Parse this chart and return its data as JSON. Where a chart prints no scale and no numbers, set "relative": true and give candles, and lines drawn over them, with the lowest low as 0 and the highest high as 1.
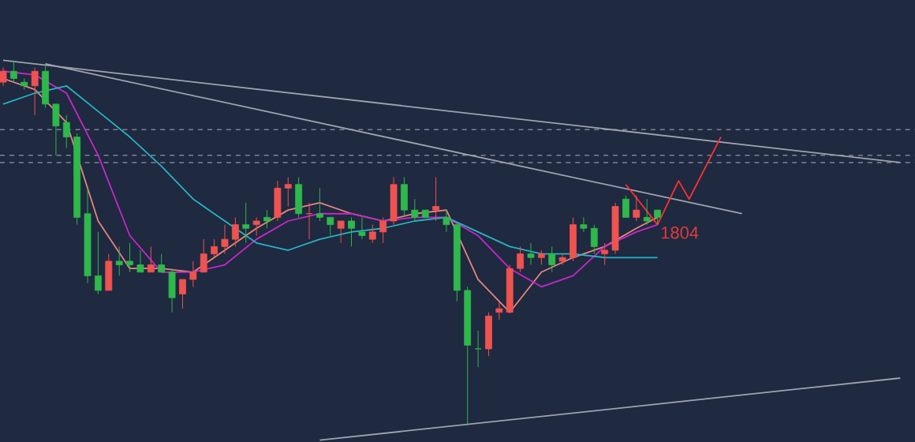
{
  "chart_data": {
    "type": "candlestick",
    "relative": true,
    "categories": [
      null,
      null,
      null,
      null,
      null,
      null,
      null,
      null,
      null,
      null,
      null,
      null,
      null,
      null,
      null,
      null,
      null,
      null,
      null,
      null,
      null,
      null,
      null,
      null,
      null,
      null,
      null,
      null,
      null,
      null,
      null,
      null,
      null,
      null,
      null,
      null,
      null,
      null,
      null,
      null,
      null,
      null,
      null,
      null,
      null,
      null,
      null,
      null,
      null,
      null,
      null,
      null,
      null,
      null,
      null,
      null,
      null,
      null,
      null,
      null,
      null,
      null,
      null,
      null,
      null,
      null,
      null,
      null,
      null,
      null,
      null,
      null,
      null,
      null,
      null,
      null,
      null,
      null,
      null,
      null,
      null,
      null,
      null,
      null,
      null,
      null
    ],
    "ohlc": [
      [
        0.94,
        0.98,
        0.93,
        0.97
      ],
      [
        0.97,
        1.0,
        0.94,
        0.95
      ],
      [
        0.94,
        0.95,
        0.92,
        0.93
      ],
      [
        0.93,
        0.98,
        0.85,
        0.97
      ],
      [
        0.97,
        0.99,
        0.87,
        0.88
      ],
      [
        0.88,
        0.88,
        0.74,
        0.82
      ],
      [
        0.83,
        0.85,
        0.76,
        0.79
      ],
      [
        0.79,
        0.8,
        0.55,
        0.57
      ],
      [
        0.58,
        0.65,
        0.39,
        0.41
      ],
      [
        0.41,
        0.53,
        0.36,
        0.37
      ],
      [
        0.37,
        0.47,
        0.37,
        0.45
      ],
      [
        0.45,
        0.49,
        0.41,
        0.44
      ],
      [
        0.45,
        0.5,
        0.42,
        0.44
      ],
      [
        0.44,
        0.48,
        0.42,
        0.42
      ],
      [
        0.42,
        0.49,
        0.42,
        0.44
      ],
      [
        0.44,
        0.47,
        0.42,
        0.42
      ],
      [
        0.42,
        0.43,
        0.31,
        0.35
      ],
      [
        0.36,
        0.4,
        0.32,
        0.4
      ],
      [
        0.4,
        0.45,
        0.38,
        0.42
      ],
      [
        0.42,
        0.51,
        0.42,
        0.47
      ],
      [
        0.47,
        0.51,
        0.46,
        0.49
      ],
      [
        0.49,
        0.55,
        0.47,
        0.51
      ],
      [
        0.51,
        0.57,
        0.49,
        0.55
      ],
      [
        0.55,
        0.61,
        0.5,
        0.54
      ],
      [
        0.55,
        0.57,
        0.52,
        0.56
      ],
      [
        0.57,
        0.59,
        0.54,
        0.56
      ],
      [
        0.57,
        0.67,
        0.56,
        0.65
      ],
      [
        0.65,
        0.68,
        0.6,
        0.66
      ],
      [
        0.66,
        0.68,
        0.57,
        0.58
      ],
      [
        0.58,
        0.61,
        0.51,
        0.58
      ],
      [
        0.58,
        0.65,
        0.56,
        0.57
      ],
      [
        0.57,
        0.57,
        0.52,
        0.55
      ],
      [
        0.54,
        0.56,
        0.5,
        0.56
      ],
      [
        0.56,
        0.57,
        0.49,
        0.54
      ],
      [
        0.53,
        0.57,
        0.51,
        0.52
      ],
      [
        0.51,
        0.55,
        0.5,
        0.53
      ],
      [
        0.53,
        0.57,
        0.5,
        0.56
      ],
      [
        0.56,
        0.68,
        0.55,
        0.66
      ],
      [
        0.66,
        0.68,
        0.57,
        0.59
      ],
      [
        0.59,
        0.62,
        0.56,
        0.57
      ],
      [
        0.59,
        0.59,
        0.57,
        0.57
      ],
      [
        0.59,
        0.68,
        0.56,
        0.6
      ],
      [
        0.57,
        0.59,
        0.53,
        0.55
      ],
      [
        0.55,
        0.55,
        0.34,
        0.37
      ],
      [
        0.37,
        0.38,
        0.0,
        0.22
      ],
      [
        0.21,
        0.26,
        0.16,
        0.21
      ],
      [
        0.21,
        0.31,
        0.19,
        0.3
      ],
      [
        0.31,
        0.34,
        0.29,
        0.32
      ],
      [
        0.31,
        0.44,
        0.31,
        0.43
      ],
      [
        0.43,
        0.49,
        0.42,
        0.47
      ],
      [
        0.47,
        0.5,
        0.44,
        0.46
      ],
      [
        0.46,
        0.48,
        0.44,
        0.47
      ],
      [
        0.47,
        0.49,
        0.42,
        0.44
      ],
      [
        0.45,
        0.47,
        0.44,
        0.46
      ],
      [
        0.46,
        0.57,
        0.45,
        0.55
      ],
      [
        0.55,
        0.57,
        0.53,
        0.54
      ],
      [
        0.54,
        0.55,
        0.47,
        0.49
      ],
      [
        0.47,
        0.5,
        0.44,
        0.48
      ],
      [
        0.48,
        0.61,
        0.47,
        0.6
      ],
      [
        0.62,
        0.63,
        0.57,
        0.57
      ],
      [
        0.57,
        0.63,
        0.56,
        0.59
      ],
      [
        0.57,
        0.62,
        0.55,
        0.56
      ],
      [
        0.59,
        0.59,
        0.55,
        0.57
      ],
      null,
      null,
      null,
      null,
      null,
      null,
      null,
      null,
      null,
      null,
      null,
      null,
      null,
      null,
      null,
      null,
      null,
      null,
      null,
      null,
      null,
      null,
      null
    ],
    "colors": [
      "#ef5350",
      "#2fb84b",
      "#2fb84b",
      "#ef5350",
      "#2fb84b",
      "#2fb84b",
      "#2fb84b",
      "#2fb84b",
      "#2fb84b",
      "#2fb84b",
      "#ef5350",
      "#2fb84b",
      "#2fb84b",
      "#2fb84b",
      "#ef5350",
      "#2fb84b",
      "#2fb84b",
      "#ef5350",
      "#ef5350",
      "#ef5350",
      "#ef5350",
      "#ef5350",
      "#ef5350",
      "#2fb84b",
      "#ef5350",
      "#2fb84b",
      "#ef5350",
      "#ef5350",
      "#2fb84b",
      "#ef5350",
      "#2fb84b",
      "#2fb84b",
      "#ef5350",
      "#2fb84b",
      "#2fb84b",
      "#ef5350",
      "#ef5350",
      "#ef5350",
      "#2fb84b",
      "#2fb84b",
      "#2fb84b",
      "#ef5350",
      "#2fb84b",
      "#2fb84b",
      "#2fb84b",
      "#2fb84b",
      "#ef5350",
      "#ef5350",
      "#ef5350",
      "#ef5350",
      "#2fb84b",
      "#ef5350",
      "#2fb84b",
      "#ef5350",
      "#ef5350",
      "#2fb84b",
      "#2fb84b",
      "#ef5350",
      "#ef5350",
      "#2fb84b",
      "#ef5350",
      "#2fb84b",
      "#2fb84b",
      null,
      null,
      null,
      null,
      null,
      null,
      null,
      null,
      null,
      null,
      null,
      null,
      null,
      null,
      null,
      null,
      null,
      null,
      null,
      null,
      null,
      null,
      null
    ],
    "series": [
      {
        "type": "line",
        "color": "#e7867c",
        "values": [
          0.95,
          null,
          null,
          0.92,
          null,
          null,
          0.83,
          null,
          null,
          0.56,
          null,
          null,
          0.43,
          null,
          null,
          0.43,
          null,
          null,
          0.42,
          null,
          null,
          0.48,
          null,
          null,
          0.54,
          null,
          null,
          0.59,
          null,
          null,
          0.61,
          null,
          null,
          0.58,
          null,
          null,
          0.56,
          null,
          null,
          0.58,
          null,
          null,
          0.59,
          null,
          null,
          0.4,
          null,
          null,
          0.31,
          null,
          null,
          0.42,
          null,
          null,
          0.46,
          null,
          null,
          0.49,
          null,
          null,
          0.54,
          null,
          0.57,
          null,
          null,
          null,
          null,
          null,
          null,
          null,
          null,
          null,
          null,
          null,
          null,
          null,
          null,
          null,
          null,
          null,
          null,
          null,
          null,
          null,
          null,
          null
        ]
      },
      {
        "type": "line",
        "color": "#c926c9",
        "values": [
          0.97,
          null,
          null,
          0.96,
          null,
          null,
          0.91,
          null,
          null,
          0.74,
          null,
          null,
          0.52,
          null,
          null,
          0.42,
          null,
          null,
          0.42,
          null,
          null,
          0.44,
          null,
          null,
          0.51,
          null,
          null,
          0.56,
          null,
          null,
          0.58,
          null,
          null,
          0.58,
          null,
          null,
          0.56,
          null,
          null,
          0.57,
          null,
          null,
          0.57,
          null,
          null,
          0.52,
          null,
          null,
          0.43,
          null,
          null,
          0.38,
          null,
          null,
          0.41,
          null,
          null,
          0.49,
          null,
          null,
          0.53,
          null,
          0.55,
          null,
          null,
          null,
          null,
          null,
          null,
          null,
          null,
          null,
          null,
          null,
          null,
          null,
          null,
          null,
          null,
          null,
          null,
          null,
          null,
          null,
          null,
          null
        ]
      },
      {
        "type": "line",
        "color": "#27b3c4",
        "values": [
          0.88,
          null,
          null,
          0.91,
          null,
          null,
          0.93,
          null,
          null,
          0.86,
          null,
          null,
          0.79,
          null,
          null,
          0.71,
          null,
          null,
          0.62,
          null,
          null,
          0.56,
          null,
          null,
          0.5,
          null,
          null,
          0.48,
          null,
          null,
          0.51,
          null,
          null,
          0.53,
          null,
          null,
          0.54,
          null,
          null,
          0.56,
          null,
          null,
          0.57,
          null,
          null,
          0.53,
          null,
          null,
          0.49,
          null,
          null,
          0.47,
          null,
          null,
          0.47,
          null,
          null,
          0.46,
          null,
          null,
          0.46,
          null,
          0.46,
          null,
          null,
          null,
          null,
          null,
          null,
          null,
          null,
          null,
          null,
          null,
          null,
          null,
          null,
          null,
          null,
          null,
          null,
          null,
          null,
          null,
          null,
          null
        ]
      },
      {
        "type": "line",
        "color": "#9ea3ad",
        "values": [
          1.0,
          null,
          null,
          null,
          null,
          null,
          null,
          null,
          null,
          null,
          null,
          null,
          null,
          null,
          null,
          null,
          null,
          null,
          null,
          null,
          null,
          null,
          null,
          null,
          null,
          null,
          null,
          null,
          null,
          null,
          null,
          null,
          null,
          null,
          null,
          null,
          null,
          null,
          null,
          null,
          null,
          null,
          null,
          null,
          null,
          null,
          null,
          null,
          null,
          null,
          null,
          null,
          null,
          null,
          null,
          null,
          null,
          null,
          null,
          null,
          null,
          null,
          null,
          null,
          null,
          null,
          null,
          null,
          null,
          null,
          null,
          null,
          null,
          null,
          null,
          null,
          null,
          null,
          null,
          null,
          null,
          null,
          null,
          null,
          null,
          0.72
        ]
      },
      {
        "type": "line",
        "color": "#9ea3ad",
        "values": [
          null,
          null,
          null,
          null,
          0.99,
          null,
          null,
          null,
          null,
          null,
          null,
          null,
          null,
          null,
          null,
          null,
          null,
          null,
          null,
          null,
          null,
          null,
          null,
          null,
          null,
          null,
          null,
          null,
          null,
          null,
          null,
          null,
          null,
          null,
          null,
          null,
          null,
          null,
          null,
          null,
          null,
          null,
          null,
          null,
          null,
          null,
          null,
          null,
          null,
          null,
          null,
          null,
          null,
          null,
          null,
          null,
          null,
          null,
          null,
          null,
          null,
          null,
          null,
          null,
          null,
          null,
          null,
          null,
          null,
          null,
          0.58,
          null,
          null,
          null,
          null,
          null,
          null,
          null,
          null,
          null,
          null,
          null,
          null,
          null,
          null,
          null
        ]
      },
      {
        "type": "line",
        "color": "#9ea3ad",
        "values": [
          null,
          null,
          null,
          null,
          null,
          null,
          null,
          null,
          null,
          null,
          null,
          null,
          null,
          null,
          null,
          null,
          null,
          null,
          null,
          null,
          null,
          null,
          null,
          null,
          null,
          null,
          null,
          null,
          null,
          null,
          -0.04,
          null,
          null,
          null,
          null,
          null,
          null,
          null,
          null,
          null,
          null,
          null,
          null,
          null,
          null,
          null,
          null,
          null,
          null,
          null,
          null,
          null,
          null,
          null,
          null,
          null,
          null,
          null,
          null,
          null,
          null,
          null,
          null,
          null,
          null,
          null,
          null,
          null,
          null,
          null,
          null,
          null,
          null,
          null,
          null,
          null,
          null,
          null,
          null,
          null,
          null,
          null,
          null,
          null,
          null,
          0.13
        ]
      },
      {
        "type": "line",
        "color": "#ff3030",
        "values": [
          null,
          null,
          null,
          null,
          null,
          null,
          null,
          null,
          null,
          null,
          null,
          null,
          null,
          null,
          null,
          null,
          null,
          null,
          null,
          null,
          null,
          null,
          null,
          null,
          null,
          null,
          null,
          null,
          null,
          null,
          null,
          null,
          null,
          null,
          null,
          null,
          null,
          null,
          null,
          null,
          null,
          null,
          null,
          null,
          null,
          null,
          null,
          null,
          null,
          null,
          null,
          null,
          null,
          null,
          null,
          null,
          null,
          null,
          null,
          0.66,
          null,
          null,
          0.55,
          null,
          null,
          null,
          null,
          null,
          null,
          null,
          null,
          null,
          null,
          null,
          null,
          null,
          null,
          null,
          null,
          null,
          null,
          null,
          null,
          null,
          null,
          null
        ]
      },
      {
        "type": "line",
        "color": "#ff3030",
        "values": [
          null,
          null,
          null,
          null,
          null,
          null,
          null,
          null,
          null,
          null,
          null,
          null,
          null,
          null,
          null,
          null,
          null,
          null,
          null,
          null,
          null,
          null,
          null,
          null,
          null,
          null,
          null,
          null,
          null,
          null,
          null,
          null,
          null,
          null,
          null,
          null,
          null,
          null,
          null,
          null,
          null,
          null,
          null,
          null,
          null,
          null,
          null,
          null,
          null,
          null,
          null,
          null,
          null,
          null,
          null,
          null,
          null,
          null,
          null,
          null,
          null,
          null,
          0.55,
          null,
          0.67,
          0.62,
          null,
          null,
          0.79,
          null,
          null,
          null,
          null,
          null,
          null,
          null,
          null,
          null,
          null,
          null,
          null,
          null,
          null,
          null,
          null,
          null
        ]
      }
    ],
    "ref_lines": [
      {
        "axis": "y",
        "value": 0.81,
        "color": "#7d8494",
        "line_style": "dashed"
      },
      {
        "axis": "y",
        "value": 0.74,
        "color": "#7d8494",
        "line_style": "dashed"
      },
      {
        "axis": "y",
        "value": 0.72,
        "color": "#7d8494",
        "line_style": "dashed"
      }
    ],
    "annotations": [
      "1804"
    ]
  }
}
